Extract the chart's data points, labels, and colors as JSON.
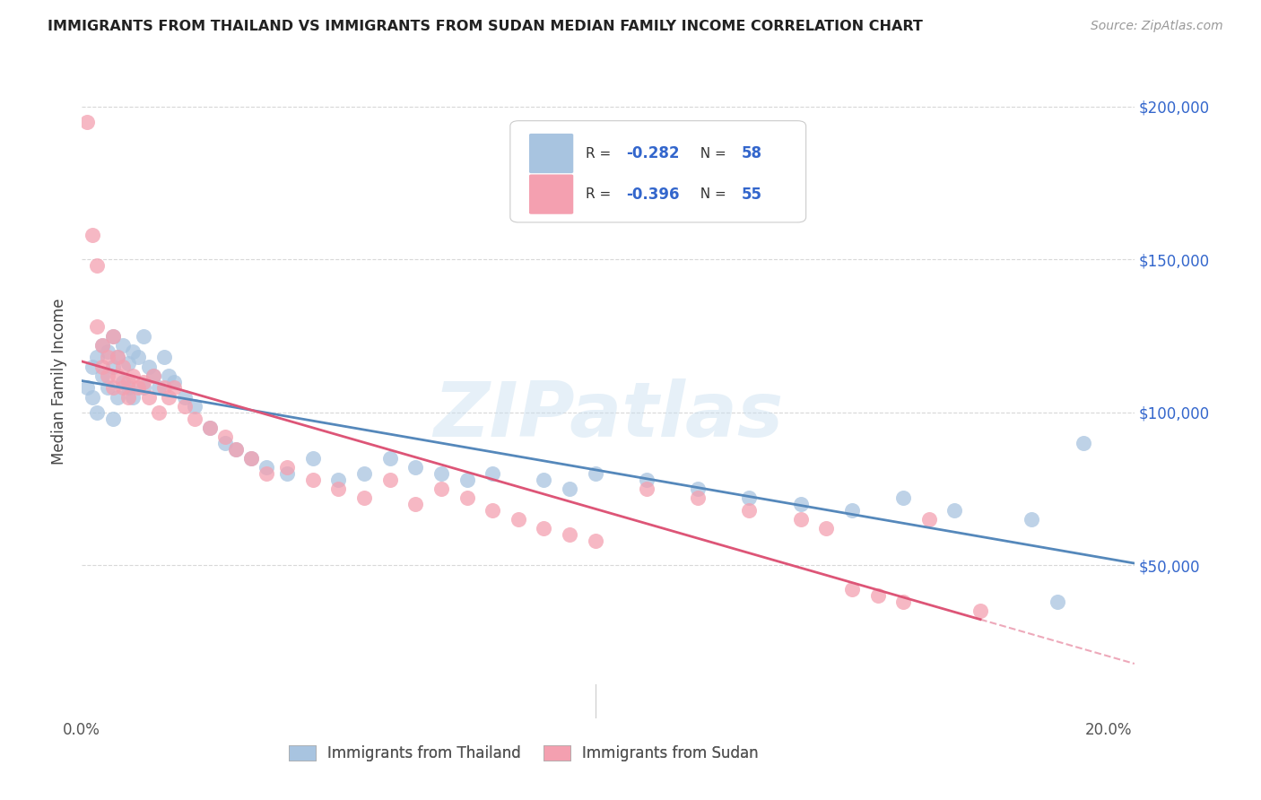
{
  "title": "IMMIGRANTS FROM THAILAND VS IMMIGRANTS FROM SUDAN MEDIAN FAMILY INCOME CORRELATION CHART",
  "source": "Source: ZipAtlas.com",
  "ylabel": "Median Family Income",
  "xlim": [
    0.0,
    0.205
  ],
  "ylim": [
    0,
    220000
  ],
  "ytick_labels": [
    "$50,000",
    "$100,000",
    "$150,000",
    "$200,000"
  ],
  "ytick_values": [
    50000,
    100000,
    150000,
    200000
  ],
  "background_color": "#ffffff",
  "grid_color": "#d8d8d8",
  "thailand_color": "#a8c4e0",
  "sudan_color": "#f4a0b0",
  "thailand_line_color": "#5588bb",
  "sudan_line_color": "#dd5577",
  "R_thailand": -0.282,
  "N_thailand": 58,
  "R_sudan": -0.396,
  "N_sudan": 55,
  "thailand_x": [
    0.001,
    0.002,
    0.002,
    0.003,
    0.003,
    0.004,
    0.004,
    0.005,
    0.005,
    0.006,
    0.006,
    0.006,
    0.007,
    0.007,
    0.008,
    0.008,
    0.009,
    0.009,
    0.01,
    0.01,
    0.011,
    0.012,
    0.012,
    0.013,
    0.014,
    0.015,
    0.016,
    0.017,
    0.018,
    0.02,
    0.022,
    0.025,
    0.028,
    0.03,
    0.033,
    0.036,
    0.04,
    0.045,
    0.05,
    0.055,
    0.06,
    0.065,
    0.07,
    0.075,
    0.08,
    0.09,
    0.095,
    0.1,
    0.11,
    0.12,
    0.13,
    0.14,
    0.15,
    0.16,
    0.17,
    0.185,
    0.19,
    0.195
  ],
  "thailand_y": [
    108000,
    115000,
    105000,
    118000,
    100000,
    122000,
    112000,
    120000,
    108000,
    125000,
    115000,
    98000,
    118000,
    105000,
    122000,
    110000,
    116000,
    108000,
    120000,
    105000,
    118000,
    125000,
    108000,
    115000,
    112000,
    108000,
    118000,
    112000,
    110000,
    105000,
    102000,
    95000,
    90000,
    88000,
    85000,
    82000,
    80000,
    85000,
    78000,
    80000,
    85000,
    82000,
    80000,
    78000,
    80000,
    78000,
    75000,
    80000,
    78000,
    75000,
    72000,
    70000,
    68000,
    72000,
    68000,
    65000,
    38000,
    90000
  ],
  "sudan_x": [
    0.001,
    0.002,
    0.003,
    0.003,
    0.004,
    0.004,
    0.005,
    0.005,
    0.006,
    0.006,
    0.007,
    0.007,
    0.008,
    0.008,
    0.009,
    0.009,
    0.01,
    0.011,
    0.012,
    0.013,
    0.014,
    0.015,
    0.016,
    0.017,
    0.018,
    0.02,
    0.022,
    0.025,
    0.028,
    0.03,
    0.033,
    0.036,
    0.04,
    0.045,
    0.05,
    0.055,
    0.06,
    0.065,
    0.07,
    0.075,
    0.08,
    0.085,
    0.09,
    0.095,
    0.1,
    0.11,
    0.12,
    0.13,
    0.14,
    0.145,
    0.15,
    0.155,
    0.16,
    0.165,
    0.175
  ],
  "sudan_y": [
    195000,
    158000,
    148000,
    128000,
    122000,
    115000,
    118000,
    112000,
    125000,
    108000,
    118000,
    112000,
    115000,
    108000,
    110000,
    105000,
    112000,
    108000,
    110000,
    105000,
    112000,
    100000,
    108000,
    105000,
    108000,
    102000,
    98000,
    95000,
    92000,
    88000,
    85000,
    80000,
    82000,
    78000,
    75000,
    72000,
    78000,
    70000,
    75000,
    72000,
    68000,
    65000,
    62000,
    60000,
    58000,
    75000,
    72000,
    68000,
    65000,
    62000,
    42000,
    40000,
    38000,
    65000,
    35000
  ],
  "watermark": "ZIPatlas",
  "legend_box_color_thailand": "#a8c4e0",
  "legend_box_color_sudan": "#f4a0b0",
  "legend_text_color": "#3366cc"
}
